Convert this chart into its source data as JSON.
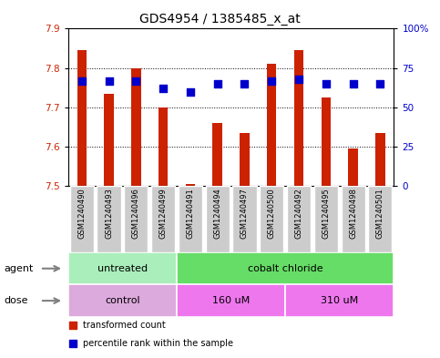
{
  "title": "GDS4954 / 1385485_x_at",
  "samples": [
    "GSM1240490",
    "GSM1240493",
    "GSM1240496",
    "GSM1240499",
    "GSM1240491",
    "GSM1240494",
    "GSM1240497",
    "GSM1240500",
    "GSM1240492",
    "GSM1240495",
    "GSM1240498",
    "GSM1240501"
  ],
  "bar_values": [
    7.845,
    7.735,
    7.8,
    7.7,
    7.505,
    7.66,
    7.635,
    7.81,
    7.845,
    7.725,
    7.595,
    7.635
  ],
  "dot_values": [
    67,
    67,
    67,
    62,
    60,
    65,
    65,
    67,
    68,
    65,
    65,
    65
  ],
  "bar_base": 7.5,
  "ylim": [
    7.5,
    7.9
  ],
  "yticks": [
    7.5,
    7.6,
    7.7,
    7.8,
    7.9
  ],
  "y2lim": [
    0,
    100
  ],
  "y2ticks": [
    0,
    25,
    50,
    75,
    100
  ],
  "y2ticklabels": [
    "0",
    "25",
    "50",
    "75",
    "100%"
  ],
  "bar_color": "#cc2200",
  "dot_color": "#0000cc",
  "plot_bg": "#ffffff",
  "agent_groups": [
    {
      "label": "untreated",
      "start": 0,
      "end": 4,
      "color": "#aaeebb"
    },
    {
      "label": "cobalt chloride",
      "start": 4,
      "end": 12,
      "color": "#66dd66"
    }
  ],
  "dose_groups": [
    {
      "label": "control",
      "start": 0,
      "end": 4,
      "color": "#ddaadd"
    },
    {
      "label": "160 uM",
      "start": 4,
      "end": 8,
      "color": "#ee77ee"
    },
    {
      "label": "310 uM",
      "start": 8,
      "end": 12,
      "color": "#ee77ee"
    }
  ],
  "legend_items": [
    {
      "label": "transformed count",
      "color": "#cc2200"
    },
    {
      "label": "percentile rank within the sample",
      "color": "#0000cc"
    }
  ],
  "agent_label": "agent",
  "dose_label": "dose",
  "bar_width": 0.35,
  "dot_size": 28,
  "title_fontsize": 10,
  "tick_fontsize": 7.5,
  "sample_fontsize": 6,
  "row_fontsize": 8
}
